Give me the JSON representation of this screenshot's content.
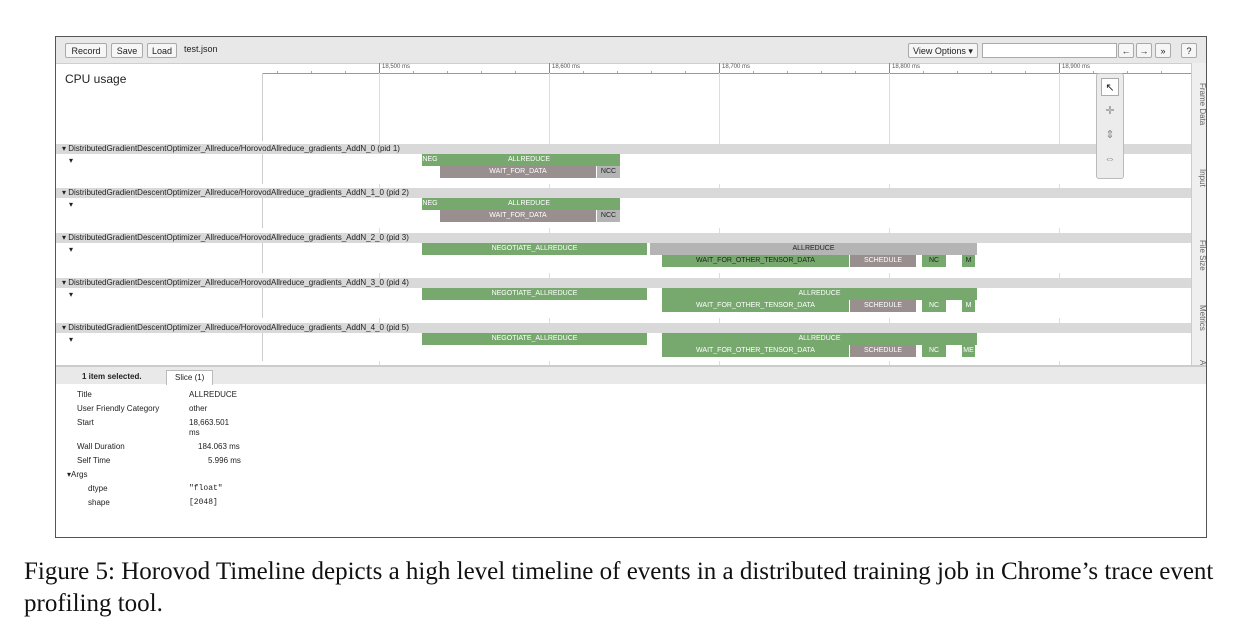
{
  "toolbar": {
    "record_label": "Record",
    "save_label": "Save",
    "load_label": "Load",
    "filename": "test.json",
    "view_options_label": "View Options ▾",
    "prev_label": "←",
    "next_label": "→",
    "all_label": "»",
    "help_label": "?"
  },
  "ruler": {
    "ticks": [
      "18,500 ms",
      "18,600 ms",
      "18,700 ms",
      "18,800 ms",
      "18,900 ms"
    ]
  },
  "cpu": {
    "label": "CPU usage"
  },
  "processes": [
    {
      "header": "▾ DistributedGradientDescentOptimizer_Allreduce/HorovodAllreduce_gradients_AddN_0 (pid 1)",
      "slices": [
        [
          "NEG",
          "ALLREDUCE"
        ],
        [
          "WAIT_FOR_DATA",
          "NCC"
        ]
      ]
    },
    {
      "header": "▾ DistributedGradientDescentOptimizer_Allreduce/HorovodAllreduce_gradients_AddN_1_0 (pid 2)",
      "slices": [
        [
          "NEG",
          "ALLREDUCE"
        ],
        [
          "WAIT_FOR_DATA",
          "NCC"
        ]
      ]
    },
    {
      "header": "▾ DistributedGradientDescentOptimizer_Allreduce/HorovodAllreduce_gradients_AddN_2_0 (pid 3)",
      "slices": [
        [
          "NEGOTIATE_ALLREDUCE",
          "ALLREDUCE"
        ],
        [
          "WAIT_FOR_OTHER_TENSOR_DATA",
          "SCHEDULE",
          "NC",
          "M"
        ]
      ]
    },
    {
      "header": "▾ DistributedGradientDescentOptimizer_Allreduce/HorovodAllreduce_gradients_AddN_3_0 (pid 4)",
      "slices": [
        [
          "NEGOTIATE_ALLREDUCE",
          "ALLREDUCE"
        ],
        [
          "WAIT_FOR_OTHER_TENSOR_DATA",
          "SCHEDULE",
          "NC",
          "M"
        ]
      ]
    },
    {
      "header": "▾ DistributedGradientDescentOptimizer_Allreduce/HorovodAllreduce_gradients_AddN_4_0 (pid 5)",
      "slices": [
        [
          "NEGOTIATE_ALLREDUCE",
          "ALLREDUCE"
        ],
        [
          "WAIT_FOR_OTHER_TENSOR_DATA",
          "SCHEDULE",
          "NC",
          "ME"
        ]
      ]
    }
  ],
  "track_arrow": "▾",
  "sidebar": {
    "items": [
      "Frame Data",
      "Input",
      "File Size",
      "Metrics",
      "Alerts"
    ]
  },
  "tools": {
    "select": "↖",
    "pan": "✛",
    "zoom": "⇕",
    "timing": "⇔"
  },
  "analysis": {
    "tab_selected": "1 item selected.",
    "tab_slice": "Slice (1)",
    "props": {
      "title_k": "Title",
      "title_v": "ALLREDUCE",
      "cat_k": "User Friendly Category",
      "cat_v": "other",
      "start_k": "Start",
      "start_v": "18,663.501",
      "start_unit": "ms",
      "wall_k": "Wall Duration",
      "wall_v": "184.063 ms",
      "self_k": "Self Time",
      "self_v": "5.996 ms",
      "args_k": "▾Args",
      "dtype_k": "dtype",
      "dtype_v": "\"float\"",
      "shape_k": "shape",
      "shape_v": "[2048]"
    }
  },
  "caption": "Figure 5: Horovod Timeline depicts a high level timeline of events in a distributed training job in Chrome’s trace event profiling tool."
}
